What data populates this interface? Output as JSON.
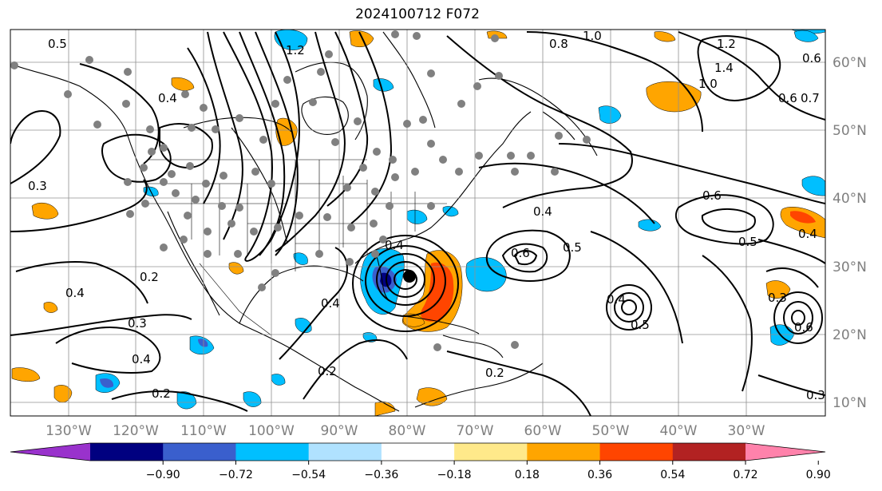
{
  "title": "2024100712 F072",
  "lat_labels": [
    "60°N",
    "50°N",
    "40°N",
    "30°N",
    "20°N",
    "10°N"
  ],
  "lon_labels": [
    "130°W",
    "120°W",
    "110°W",
    "100°W",
    "90°W",
    "80°W",
    "70°W",
    "60°W",
    "50°W",
    "40°W",
    "30°W"
  ],
  "colorbar": {
    "colors": [
      "#9932cc",
      "#000080",
      "#3a5fcd",
      "#00bfff",
      "#b0e2ff",
      "#ffffff",
      "#ffe98a",
      "#ffa500",
      "#ff4500",
      "#b22222",
      "#ff82ab"
    ],
    "ticks": [
      "−0.90",
      "−0.72",
      "−0.54",
      "−0.36",
      "−0.18",
      "0.18",
      "0.36",
      "0.54",
      "0.72",
      "0.90"
    ]
  },
  "contour_labels": [
    "1.2",
    "1.0",
    "0.8",
    "0.6",
    "0.4",
    "0.3",
    "0.2",
    "0.5",
    "0.7",
    "1.4"
  ],
  "cyclone_center": {
    "lat": 28,
    "lon": -80
  }
}
